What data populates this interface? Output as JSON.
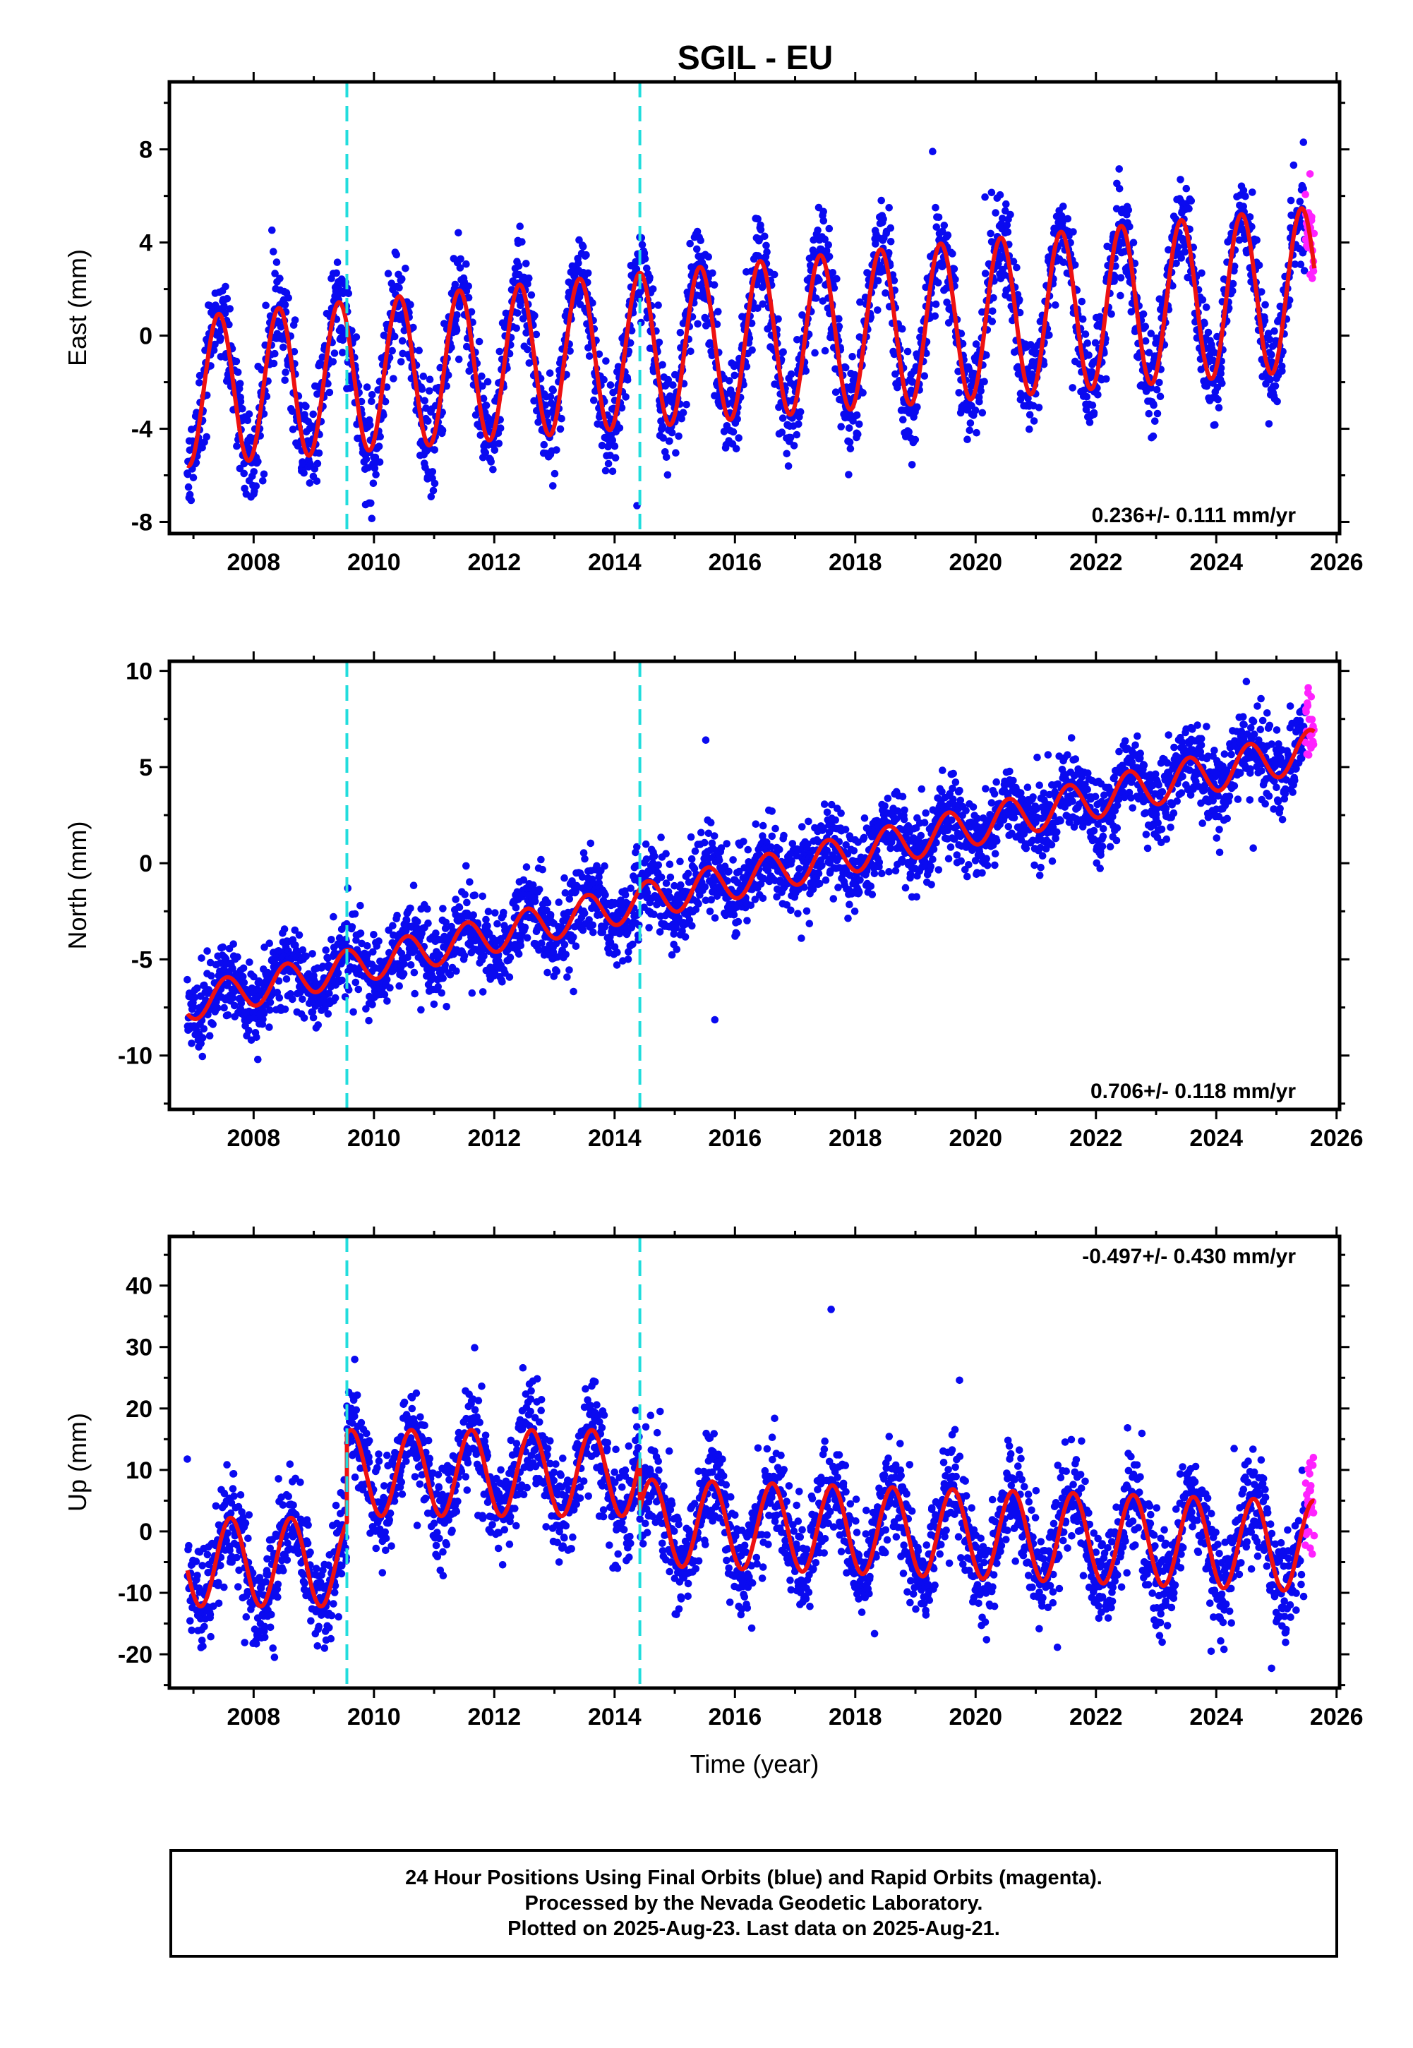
{
  "title": "SGIL - EU",
  "colors": {
    "final_orbits": "#0a0af0",
    "rapid_orbits": "#ff22ff",
    "model_fit": "#ee1111",
    "offsets": "#22dddd"
  },
  "footer": {
    "line1": "24 Hour Positions Using Final Orbits (blue) and Rapid Orbits (magenta).",
    "line2": "Processed by the Nevada Geodetic Laboratory.",
    "line3": "Plotted on 2025-Aug-23. Last data on 2025-Aug-21."
  },
  "chart_data": [
    {
      "type": "scatter",
      "title": "SGIL - EU",
      "xlabel": "",
      "ylabel": "East (mm)",
      "xlim": [
        2006.6,
        2026.05
      ],
      "ylim": [
        -8.5,
        10.9
      ],
      "xticks": [
        2008,
        2010,
        2012,
        2014,
        2016,
        2018,
        2020,
        2022,
        2024,
        2026
      ],
      "yticks": [
        -8,
        -4,
        0,
        4,
        8
      ],
      "rate_text": "0.236+/- 0.111 mm/yr",
      "rate_position": "bottom-right",
      "offsets": [
        2009.55,
        2014.42
      ],
      "data_span": [
        2006.9,
        2025.63
      ],
      "rapid_start": 2025.48,
      "model": {
        "segments": [
          {
            "start": 2006.9,
            "end": 2025.63,
            "intercept": -2.4,
            "rate": 0.236,
            "amp_start": 3.2,
            "amp_end": 3.5,
            "phase": 2007.42
          }
        ]
      },
      "noise_sd": 1.05,
      "series": [
        {
          "name": "Final Orbits (blue)",
          "role": "final"
        },
        {
          "name": "Rapid Orbits (magenta)",
          "role": "rapid"
        }
      ]
    },
    {
      "type": "scatter",
      "title": "",
      "xlabel": "",
      "ylabel": "North (mm)",
      "xlim": [
        2006.6,
        2026.05
      ],
      "ylim": [
        -12.8,
        10.5
      ],
      "xticks": [
        2008,
        2010,
        2012,
        2014,
        2016,
        2018,
        2020,
        2022,
        2024,
        2026
      ],
      "yticks": [
        -10,
        -5,
        0,
        5,
        10
      ],
      "rate_text": "0.706+/- 0.118 mm/yr",
      "rate_position": "bottom-right",
      "offsets": [
        2009.55,
        2014.42
      ],
      "data_span": [
        2006.9,
        2025.63
      ],
      "rapid_start": 2025.48,
      "model": {
        "segments": [
          {
            "start": 2006.9,
            "end": 2025.63,
            "intercept": -7.3,
            "rate": 0.706,
            "amp_start": 0.9,
            "amp_end": 1.05,
            "phase": 2007.55
          }
        ]
      },
      "noise_sd": 1.05,
      "series": [
        {
          "name": "Final Orbits (blue)",
          "role": "final"
        },
        {
          "name": "Rapid Orbits (magenta)",
          "role": "rapid"
        }
      ]
    },
    {
      "type": "scatter",
      "title": "",
      "xlabel": "Time (year)",
      "ylabel": "Up (mm)",
      "xlim": [
        2006.6,
        2026.05
      ],
      "ylim": [
        -25.5,
        48
      ],
      "xticks": [
        2008,
        2010,
        2012,
        2014,
        2016,
        2018,
        2020,
        2022,
        2024,
        2026
      ],
      "yticks": [
        -20,
        -10,
        0,
        10,
        20,
        30,
        40
      ],
      "rate_text": "-0.497+/- 0.430 mm/yr",
      "rate_position": "top-right",
      "offsets": [
        2009.55,
        2014.42
      ],
      "data_span": [
        2006.9,
        2025.63
      ],
      "rapid_start": 2025.48,
      "model": {
        "segments": [
          {
            "start": 2006.9,
            "end": 2009.55,
            "intercept": -5.0,
            "rate": 0.0,
            "amp_start": 7.2,
            "amp_end": 7.2,
            "phase": 2007.62
          },
          {
            "start": 2009.55,
            "end": 2014.42,
            "intercept": 9.5,
            "rate": 0.0,
            "amp_start": 7.0,
            "amp_end": 7.0,
            "phase": 2010.62
          },
          {
            "start": 2014.42,
            "end": 2025.63,
            "intercept": 1.5,
            "rate": -0.35,
            "amp_start": 7.0,
            "amp_end": 7.4,
            "phase": 2015.62
          }
        ]
      },
      "noise_sd": 4.2,
      "series": [
        {
          "name": "Final Orbits (blue)",
          "role": "final"
        },
        {
          "name": "Rapid Orbits (magenta)",
          "role": "rapid"
        }
      ]
    }
  ]
}
